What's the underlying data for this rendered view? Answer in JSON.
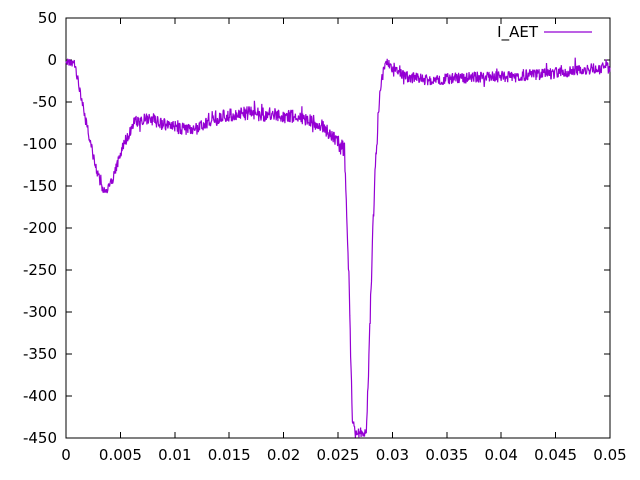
{
  "chart_data": {
    "type": "line",
    "title": "",
    "xlabel": "",
    "ylabel": "",
    "grid": false,
    "legend": {
      "label": "I_AET",
      "position": "top-right"
    },
    "series_color": "#9400d3",
    "border_color": "#000000",
    "background_color": "#ffffff",
    "xlim": [
      0,
      0.05
    ],
    "ylim": [
      -450,
      50
    ],
    "xticks": {
      "values": [
        0,
        0.005,
        0.01,
        0.015,
        0.02,
        0.025,
        0.03,
        0.035,
        0.04,
        0.045,
        0.05
      ],
      "labels": [
        "0",
        "0.005",
        "0.01",
        "0.015",
        "0.02",
        "0.025",
        "0.03",
        "0.035",
        "0.04",
        "0.045",
        "0.05"
      ]
    },
    "yticks": {
      "values": [
        50,
        0,
        -50,
        -100,
        -150,
        -200,
        -250,
        -300,
        -350,
        -400,
        -450
      ],
      "labels": [
        "50",
        "0",
        "-50",
        "-100",
        "-150",
        "-200",
        "-250",
        "-300",
        "-350",
        "-400",
        "-450"
      ]
    },
    "sample_step": 4e-05,
    "noise_seed": 42,
    "spike_probability": 0.06,
    "keypoints_format": [
      "x",
      "mean_value",
      "noise_amplitude"
    ],
    "keypoints": [
      [
        0.0,
        -2,
        4
      ],
      [
        0.0008,
        -5,
        5
      ],
      [
        0.0018,
        -70,
        6
      ],
      [
        0.0028,
        -133,
        6
      ],
      [
        0.0036,
        -160,
        6
      ],
      [
        0.0044,
        -138,
        6
      ],
      [
        0.0052,
        -103,
        7
      ],
      [
        0.0063,
        -74,
        7
      ],
      [
        0.0078,
        -70,
        8
      ],
      [
        0.0092,
        -78,
        8
      ],
      [
        0.0108,
        -83,
        8
      ],
      [
        0.0122,
        -81,
        8
      ],
      [
        0.0137,
        -71,
        8
      ],
      [
        0.0152,
        -65,
        8
      ],
      [
        0.017,
        -63,
        9
      ],
      [
        0.0192,
        -66,
        9
      ],
      [
        0.0212,
        -68,
        8
      ],
      [
        0.0227,
        -73,
        8
      ],
      [
        0.024,
        -84,
        9
      ],
      [
        0.025,
        -97,
        10
      ],
      [
        0.0256,
        -110,
        12
      ],
      [
        0.026,
        -260,
        14
      ],
      [
        0.0263,
        -425,
        10
      ],
      [
        0.0266,
        -444,
        6
      ],
      [
        0.0276,
        -444,
        6
      ],
      [
        0.0279,
        -330,
        14
      ],
      [
        0.0284,
        -130,
        12
      ],
      [
        0.0289,
        -30,
        8
      ],
      [
        0.0294,
        -1,
        5
      ],
      [
        0.0301,
        -11,
        6
      ],
      [
        0.0315,
        -21,
        7
      ],
      [
        0.0335,
        -24,
        7
      ],
      [
        0.0365,
        -21,
        7
      ],
      [
        0.0405,
        -20,
        7
      ],
      [
        0.0445,
        -16,
        7
      ],
      [
        0.0475,
        -12,
        7
      ],
      [
        0.05,
        -9,
        7
      ]
    ]
  }
}
